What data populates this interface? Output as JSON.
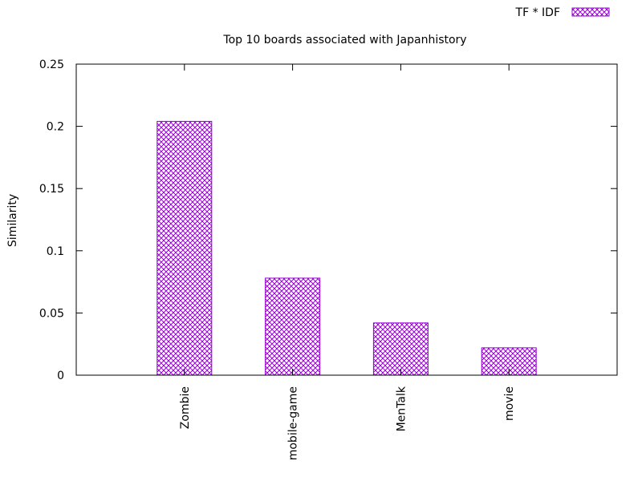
{
  "chart_data": {
    "type": "bar",
    "title": "Top 10 boards associated with Japanhistory",
    "ylabel": "Similarity",
    "xlabel": "",
    "categories": [
      "Zombie",
      "mobile-game",
      "MenTalk",
      "movie"
    ],
    "series": [
      {
        "name": "TF * IDF",
        "values": [
          0.204,
          0.078,
          0.042,
          0.022
        ]
      }
    ],
    "ylim": [
      0,
      0.25
    ],
    "yticks": [
      0,
      0.05,
      0.1,
      0.15,
      0.2,
      0.25
    ],
    "ytick_labels": [
      "0",
      "0.05",
      "0.1",
      "0.15",
      "0.2",
      "0.25"
    ],
    "grid": false,
    "legend_position": "top-right",
    "bar_color": "#9400d3",
    "fill_pattern": "crosshatch"
  }
}
